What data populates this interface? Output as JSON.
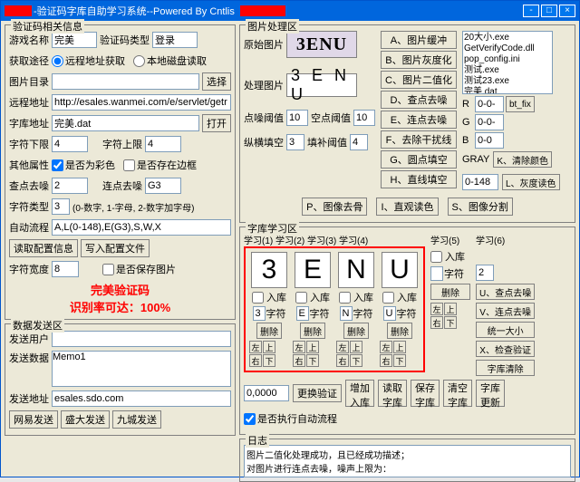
{
  "titlebar": {
    "text": "-验证码字库自助学习系统--Powered By Cntlis",
    "min": "-",
    "max": "□",
    "close": "×"
  },
  "group1": {
    "title": "验证码相关信息",
    "game_name_lbl": "游戏名称",
    "game_name": "完美",
    "type_lbl": "验证码类型",
    "type": "登录",
    "src_lbl": "获取途径",
    "radio1": "远程地址获取",
    "radio2": "本地磁盘读取",
    "pic_dir_lbl": "图片目录",
    "pic_dir": "",
    "browse": "选择",
    "remote_lbl": "远程地址",
    "remote": "http://esales.wanmei.com/e/servlet/getr",
    "lib_lbl": "字库地址",
    "lib": "完美.dat",
    "open": "打开",
    "char_lo_lbl": "字符下限",
    "char_lo": "4",
    "char_hi_lbl": "字符上限",
    "char_hi": "4",
    "other_lbl": "其他属性",
    "chk1": "是否为彩色",
    "chk2": "是否存在边框",
    "pt_noise_lbl": "查点去噪",
    "pt_noise": "2",
    "ln_noise_lbl": "连点去噪",
    "ln_noise": "G3",
    "char_type_lbl": "字符类型",
    "char_type": "3",
    "char_type_hint": "(0-数字, 1-字母, 2-数字加字母)",
    "auto_lbl": "自动流程",
    "auto": "A,L(0-148),E(G3),S,W,X",
    "btn_read": "读取配置信息",
    "btn_write": "写入配置文件",
    "char_w_lbl": "字符宽度",
    "char_w": "8",
    "chk_save": "是否保存图片",
    "red1": "完美验证码",
    "red2": "识别率可达：100%"
  },
  "group2": {
    "title": "数据发送区",
    "user_lbl": "发送用户",
    "user": "",
    "data_lbl": "发送数据",
    "data": "Memo1",
    "addr_lbl": "发送地址",
    "addr": "esales.sdo.com",
    "btn_ne": "网易发送",
    "btn_sd": "盛大发送",
    "btn_9c": "九城发送"
  },
  "imgproc": {
    "title": "图片处理区",
    "src_lbl": "原始图片",
    "captcha_src": "3ENU",
    "proc_lbl": "处理图片",
    "captcha_proc": "3 E N U",
    "btnA": "A、图片缓冲",
    "btnB": "B、图片灰度化",
    "btnC": "C、图片二值化",
    "btnD": "D、查点去噪",
    "btnE": "E、连点去噪",
    "btnF": "F、去除干扰线",
    "btnG": "G、圆点填空",
    "btnH": "H、直线填空",
    "ptthres_lbl": "点噪阈值",
    "ptthres": "10",
    "blank_lbl": "空点阈值",
    "blank": "10",
    "vh_lbl": "纵横填空",
    "vh": "3",
    "fill_lbl": "填补阈值",
    "fill": "4",
    "btn_deframe": "P、图像去骨",
    "btn_line": "I、直观读色",
    "btn_split": "S、图像分割",
    "listbox": "20大小.exe\nGetVerifyCode.dll\npop_config.ini\n测试.exe\n测试23.exe\n完美.dat\n完美.dat全部信息",
    "bt_fix": "bt_fix",
    "R": "R",
    "G": "G",
    "B": "B",
    "rv": "0-0-",
    "gv": "0-0-",
    "bv": "0-0",
    "gray_lbl": "GRAY",
    "gray": "0-148",
    "btn_clr": "K、清除颜色",
    "btn_grayread": "L、灰度读色"
  },
  "study": {
    "title": "字库学习区",
    "hdr": "学习(1) 学习(2) 学习(3) 学习(4)",
    "hdr5": "学习(5)",
    "hdr6": "学习(6)",
    "chars": [
      "3",
      "E",
      "N",
      "U"
    ],
    "in_lib": "入库",
    "char_lbl": "字符",
    "char_vals": [
      "3",
      "E",
      "N",
      "U"
    ],
    "del": "删除",
    "l": "左",
    "r": "右",
    "u": "上",
    "d": "下",
    "btnU": "U、查点去噪",
    "btnV": "V、连点去噪",
    "btn2": "2",
    "btnUnity": "统一大小",
    "btnX": "X、检查验证",
    "btn_libclr": "字库清除",
    "num": "0,0000",
    "btn_replace": "更换验证",
    "btn_add": "增加\n入库",
    "btn_read": "读取\n字库",
    "btn_save": "保存\n字库",
    "btn_clear": "清空\n字库",
    "btn_upd": "字库\n更新",
    "chk_auto": "是否执行自动流程"
  },
  "log": {
    "title": "日志",
    "lines": "图片二值化处理成功，且已经成功描述；\n对图片进行连点去噪，噪声上限为："
  }
}
